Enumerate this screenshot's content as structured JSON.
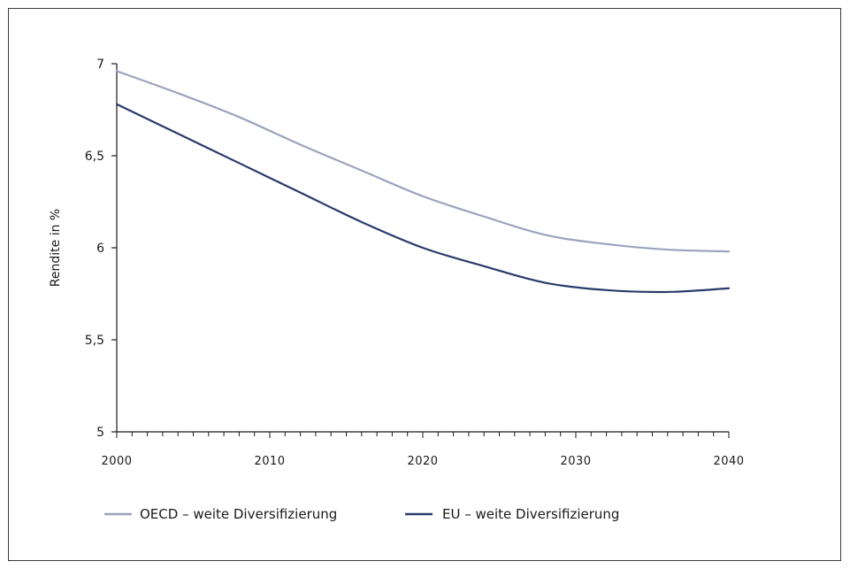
{
  "chart_data": {
    "type": "line",
    "title": "",
    "xlabel": "",
    "ylabel": "Rendite in %",
    "xlim": [
      2000,
      2040
    ],
    "ylim": [
      5,
      7
    ],
    "x_ticks": [
      2000,
      2010,
      2020,
      2030,
      2040
    ],
    "x_tick_labels": [
      "2000",
      "2010",
      "2020",
      "2030",
      "2040"
    ],
    "y_ticks": [
      5,
      5.5,
      6,
      6.5,
      7
    ],
    "y_tick_labels": [
      "5",
      "5,5",
      "6",
      "6,5",
      "7"
    ],
    "x_minor_step": 1,
    "grid": false,
    "legend_position": "bottom-left",
    "series": [
      {
        "name": "OECD – weite Diversifizierung",
        "color": "#9da3bd",
        "x": [
          2000,
          2004,
          2008,
          2012,
          2016,
          2020,
          2024,
          2028,
          2032,
          2036,
          2040
        ],
        "y": [
          6.96,
          6.84,
          6.71,
          6.56,
          6.42,
          6.28,
          6.17,
          6.07,
          6.02,
          5.99,
          5.98
        ]
      },
      {
        "name": "EU – weite Diversifizierung",
        "color": "#2a3a6b",
        "x": [
          2000,
          2004,
          2008,
          2012,
          2016,
          2020,
          2024,
          2028,
          2032,
          2036,
          2040
        ],
        "y": [
          6.78,
          6.62,
          6.46,
          6.3,
          6.14,
          6.0,
          5.9,
          5.81,
          5.77,
          5.76,
          5.78
        ]
      }
    ]
  }
}
